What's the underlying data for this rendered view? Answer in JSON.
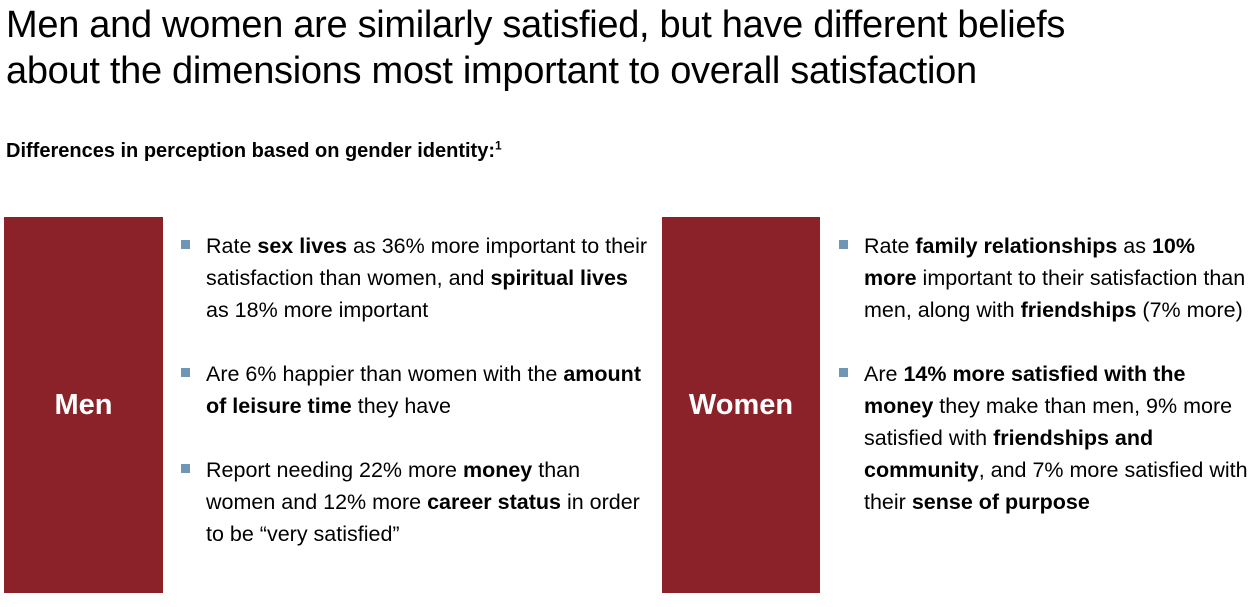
{
  "title": {
    "line1": "Men and women are similarly satisfied, but have different beliefs",
    "line2": "about the dimensions most important to overall satisfaction"
  },
  "subtitle": {
    "text": "Differences in perception based on gender identity:",
    "footnote": "1"
  },
  "colors": {
    "block": "#8b2229",
    "bullet": "#6f96b4"
  },
  "men": {
    "label": "Men",
    "bullets": [
      {
        "t1": "Rate ",
        "b1": "sex lives",
        "t2": " as 36% more important to their satisfaction than women, and ",
        "b2": "spiritual lives",
        "t3": " as 18% more important"
      },
      {
        "t1": "Are 6% happier than women with the ",
        "b1": "amount of leisure time",
        "t2": " they have"
      },
      {
        "t1": "Report needing 22% more ",
        "b1": "money",
        "t2": " than women and 12% more ",
        "b2": "career status",
        "t3": " in order to be “very satisfied”"
      }
    ]
  },
  "women": {
    "label": "Women",
    "bullets": [
      {
        "t1": "Rate ",
        "b1": "family relationships",
        "t2": " as ",
        "b2": "10% more",
        "t3": " important to their satisfaction than men, along with ",
        "b3": "friendships",
        "t4": " (7% more)"
      },
      {
        "t1": "Are ",
        "b1": "14% more satisfied with the money",
        "t2": " they make than men, 9% more satisfied with ",
        "b2": "friendships and community",
        "t3": ", and 7% more satisfied with their ",
        "b3": "sense of purpose"
      }
    ]
  }
}
